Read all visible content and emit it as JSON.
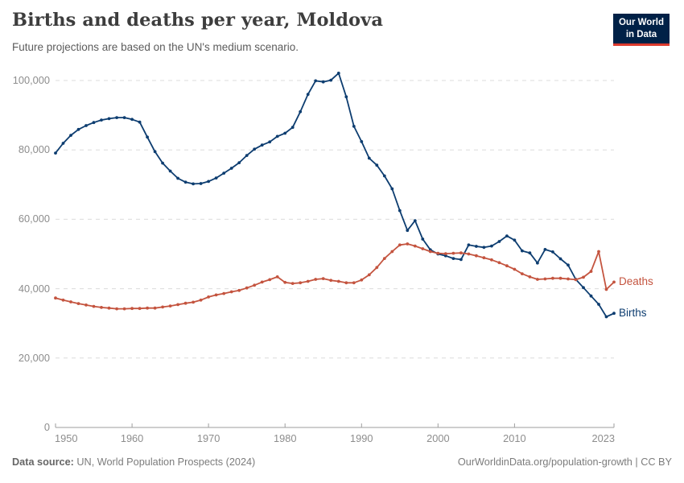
{
  "header": {
    "title": "Births and deaths per year, Moldova",
    "subtitle": "Future projections are based on the UN's medium scenario.",
    "logo_line1": "Our World",
    "logo_line2": "in Data",
    "logo_bg_color": "#002147",
    "logo_accent_color": "#dc3a2d"
  },
  "footer": {
    "source_label": "Data source:",
    "source_text": " UN, World Population Prospects (2024)",
    "link_text": "OurWorldinData.org/population-growth | CC BY"
  },
  "chart_data": {
    "type": "line",
    "title": "Births and deaths per year, Moldova",
    "subtitle": "Future projections are based on the UN's medium scenario.",
    "xlabel": "",
    "ylabel": "",
    "xlim": [
      1950,
      2023
    ],
    "ylim": [
      0,
      100000
    ],
    "grid": "horizontal-dashed",
    "legend_position": "line-end-labels",
    "grid_color": "#dcdcdc",
    "axis_color": "#9e9e9e",
    "x_ticks": [
      1950,
      1960,
      1970,
      1980,
      1990,
      2000,
      2010,
      2023
    ],
    "x_tick_labels": [
      "1950",
      "1960",
      "1970",
      "1980",
      "1990",
      "2000",
      "2010",
      "2023"
    ],
    "y_ticks": [
      0,
      20000,
      40000,
      60000,
      80000,
      100000
    ],
    "y_tick_labels": [
      "0",
      "20,000",
      "40,000",
      "60,000",
      "80,000",
      "100,000"
    ],
    "x": [
      1950,
      1951,
      1952,
      1953,
      1954,
      1955,
      1956,
      1957,
      1958,
      1959,
      1960,
      1961,
      1962,
      1963,
      1964,
      1965,
      1966,
      1967,
      1968,
      1969,
      1970,
      1971,
      1972,
      1973,
      1974,
      1975,
      1976,
      1977,
      1978,
      1979,
      1980,
      1981,
      1982,
      1983,
      1984,
      1985,
      1986,
      1987,
      1988,
      1989,
      1990,
      1991,
      1992,
      1993,
      1994,
      1995,
      1996,
      1997,
      1998,
      1999,
      2000,
      2001,
      2002,
      2003,
      2004,
      2005,
      2006,
      2007,
      2008,
      2009,
      2010,
      2011,
      2012,
      2013,
      2014,
      2015,
      2016,
      2017,
      2018,
      2019,
      2020,
      2021,
      2022,
      2023
    ],
    "series": [
      {
        "name": "Births",
        "color": "#0d3d70",
        "values": [
          79100,
          81900,
          84200,
          85900,
          87000,
          87900,
          88600,
          89000,
          89300,
          89300,
          88800,
          88000,
          83700,
          79500,
          76200,
          73900,
          71800,
          70700,
          70200,
          70300,
          70900,
          71900,
          73300,
          74700,
          76300,
          78400,
          80200,
          81400,
          82300,
          83900,
          84800,
          86500,
          91000,
          96000,
          99900,
          99600,
          100100,
          102100,
          95300,
          86800,
          82400,
          77600,
          75600,
          72500,
          68800,
          62500,
          56800,
          59600,
          54300,
          51200,
          50000,
          49500,
          48700,
          48400,
          52600,
          52200,
          51900,
          52300,
          53600,
          55200,
          54000,
          50900,
          50300,
          47400,
          51300,
          50600,
          48600,
          46800,
          42700,
          40300,
          37900,
          35500,
          31900,
          32900
        ]
      },
      {
        "name": "Deaths",
        "color": "#c4543f",
        "values": [
          37300,
          36700,
          36200,
          35700,
          35300,
          34900,
          34600,
          34400,
          34200,
          34200,
          34300,
          34300,
          34400,
          34400,
          34700,
          35000,
          35400,
          35800,
          36100,
          36700,
          37600,
          38200,
          38600,
          39100,
          39500,
          40200,
          41000,
          41900,
          42600,
          43400,
          41800,
          41500,
          41700,
          42100,
          42700,
          42900,
          42400,
          42100,
          41700,
          41700,
          42500,
          44000,
          46100,
          48700,
          50700,
          52600,
          52900,
          52300,
          51500,
          50700,
          50200,
          50100,
          50200,
          50300,
          50000,
          49500,
          48900,
          48300,
          47500,
          46600,
          45600,
          44300,
          43400,
          42700,
          42800,
          43000,
          43000,
          42800,
          42600,
          43300,
          45000,
          50700,
          39800,
          41900
        ]
      }
    ]
  }
}
